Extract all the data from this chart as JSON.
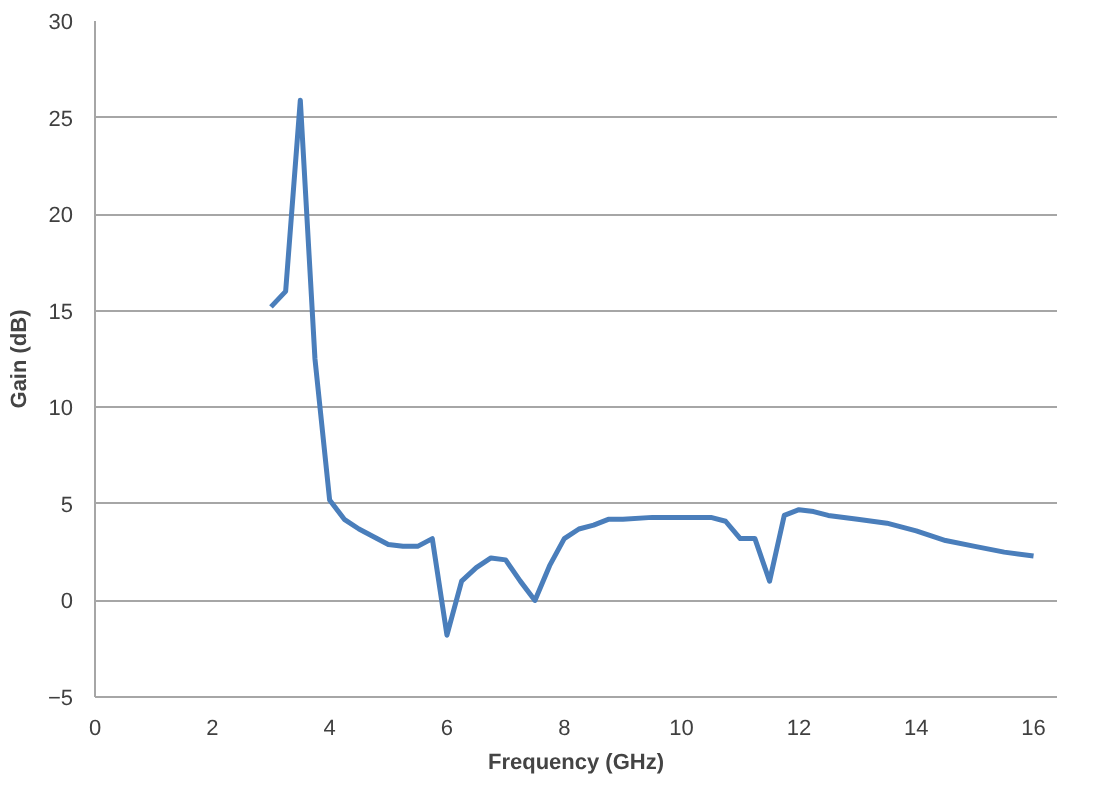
{
  "chart_data": {
    "type": "line",
    "xlabel": "Frequency (GHz)",
    "ylabel": "Gain (dB)",
    "x": [
      3,
      3.25,
      3.5,
      3.75,
      4,
      4.25,
      4.5,
      4.75,
      5,
      5.25,
      5.5,
      5.75,
      6,
      6.25,
      6.5,
      6.75,
      7,
      7.25,
      7.5,
      7.75,
      8,
      8.25,
      8.5,
      8.75,
      9,
      9.5,
      10,
      10.5,
      10.75,
      11,
      11.25,
      11.5,
      11.75,
      12,
      12.25,
      12.5,
      13,
      13.5,
      14,
      14.5,
      15,
      15.5,
      16
    ],
    "series": [
      {
        "color": "#4a7ebb",
        "values": [
          15.2,
          16.0,
          25.9,
          12.5,
          5.2,
          4.2,
          3.7,
          3.3,
          2.9,
          2.8,
          2.8,
          3.2,
          -1.8,
          1.0,
          1.7,
          2.2,
          2.1,
          1.0,
          0.0,
          1.8,
          3.2,
          3.7,
          3.9,
          4.2,
          4.2,
          4.3,
          4.3,
          4.3,
          4.1,
          3.2,
          3.2,
          1.0,
          4.4,
          4.7,
          4.6,
          4.4,
          4.2,
          4.0,
          3.6,
          3.1,
          2.8,
          2.5,
          2.3
        ]
      }
    ],
    "xlim": [
      0,
      16.4
    ],
    "ylim": [
      -5,
      30
    ],
    "xticks": [
      0,
      2,
      4,
      6,
      8,
      10,
      12,
      14,
      16
    ],
    "yticks": [
      -5,
      0,
      5,
      10,
      15,
      20,
      25,
      30
    ],
    "grid": "y",
    "marker": "none",
    "line_style": "solid"
  }
}
